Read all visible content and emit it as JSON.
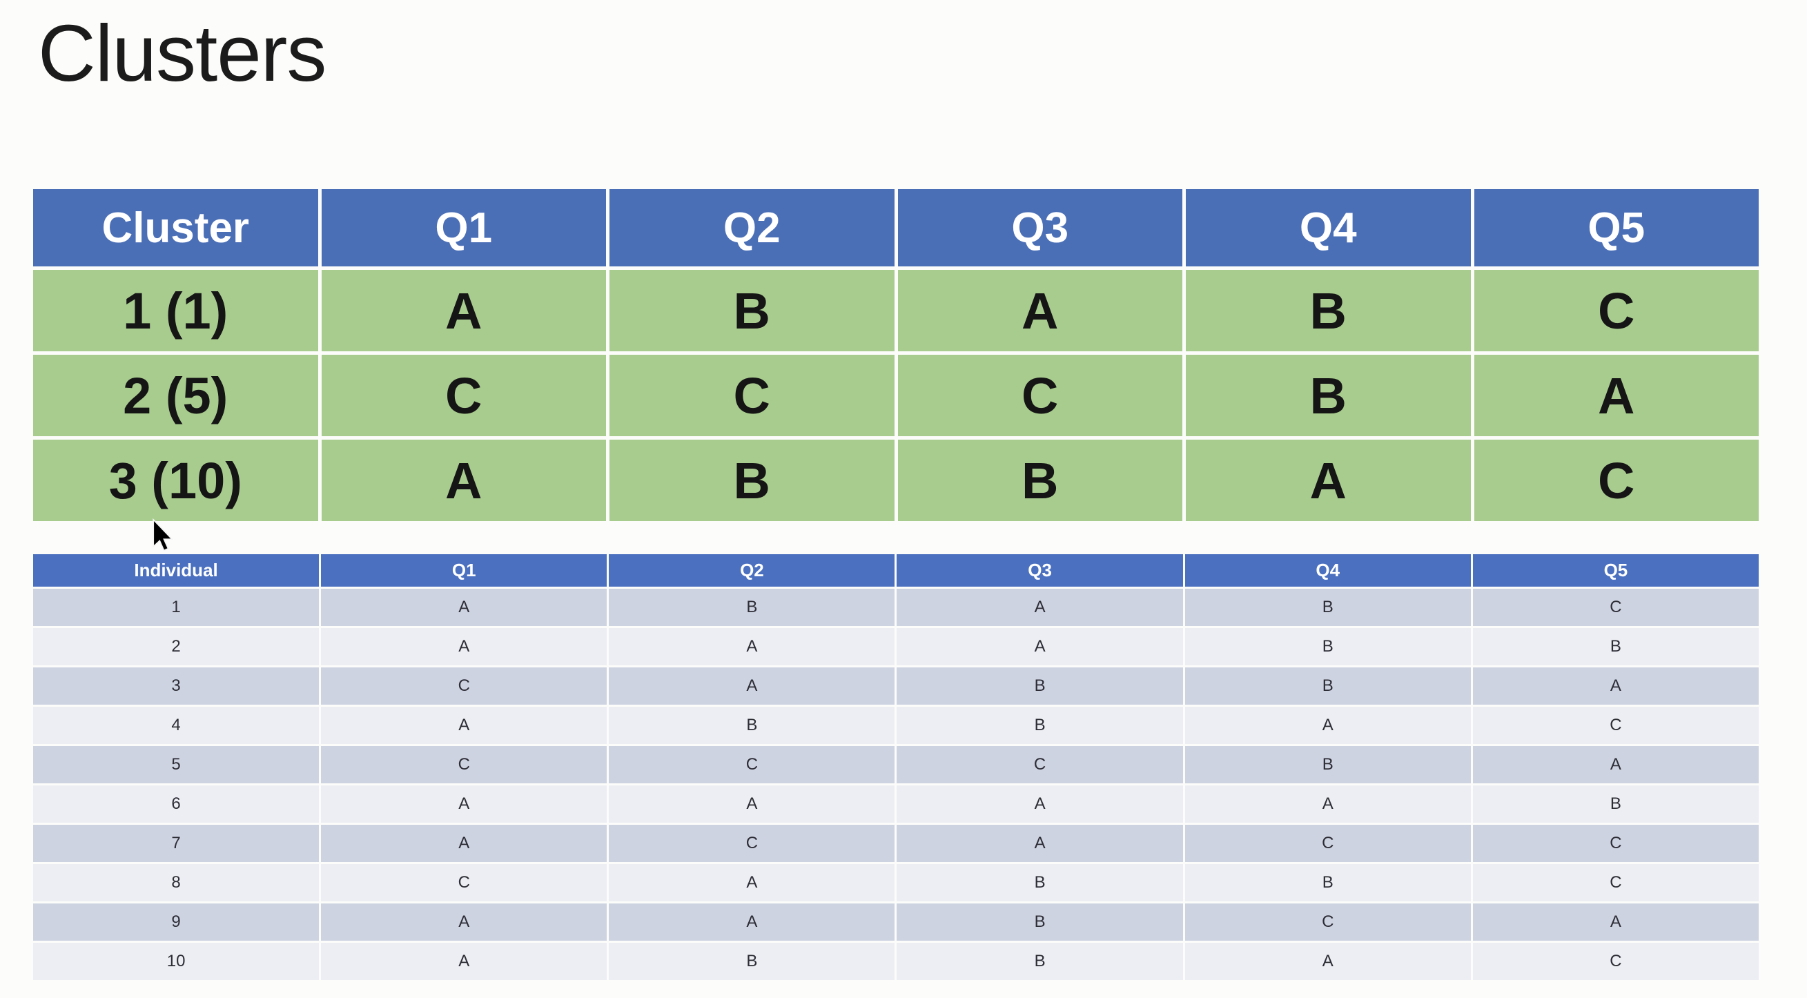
{
  "title": "Clusters",
  "colors": {
    "background": "#fcfdfa",
    "title_text": "#1b1b1b",
    "cluster_header_blue": "#4b6fb6",
    "cluster_row_green": "#a8cc8e",
    "cluster_text": "#151515",
    "individual_header_blue": "#4a70bf",
    "band_dark": "#ced3e2",
    "band_light": "#eceef3",
    "individual_text": "#2d2d36",
    "gridline": "#ffffff"
  },
  "cluster_table": {
    "headers": [
      "Cluster",
      "Q1",
      "Q2",
      "Q3",
      "Q4",
      "Q5"
    ],
    "rows": [
      {
        "label": "1 (1)",
        "values": [
          "A",
          "B",
          "A",
          "B",
          "C"
        ]
      },
      {
        "label": "2 (5)",
        "values": [
          "C",
          "C",
          "C",
          "B",
          "A"
        ]
      },
      {
        "label": "3 (10)",
        "values": [
          "A",
          "B",
          "B",
          "A",
          "C"
        ]
      }
    ]
  },
  "individual_table": {
    "headers": [
      "Individual",
      "Q1",
      "Q2",
      "Q3",
      "Q4",
      "Q5"
    ],
    "rows": [
      {
        "label": "1",
        "values": [
          "A",
          "B",
          "A",
          "B",
          "C"
        ]
      },
      {
        "label": "2",
        "values": [
          "A",
          "A",
          "A",
          "B",
          "B"
        ]
      },
      {
        "label": "3",
        "values": [
          "C",
          "A",
          "B",
          "B",
          "A"
        ]
      },
      {
        "label": "4",
        "values": [
          "A",
          "B",
          "B",
          "A",
          "C"
        ]
      },
      {
        "label": "5",
        "values": [
          "C",
          "C",
          "C",
          "B",
          "A"
        ]
      },
      {
        "label": "6",
        "values": [
          "A",
          "A",
          "A",
          "A",
          "B"
        ]
      },
      {
        "label": "7",
        "values": [
          "A",
          "C",
          "A",
          "C",
          "C"
        ]
      },
      {
        "label": "8",
        "values": [
          "C",
          "A",
          "B",
          "B",
          "C"
        ]
      },
      {
        "label": "9",
        "values": [
          "A",
          "A",
          "B",
          "C",
          "A"
        ]
      },
      {
        "label": "10",
        "values": [
          "A",
          "B",
          "B",
          "A",
          "C"
        ]
      }
    ]
  }
}
